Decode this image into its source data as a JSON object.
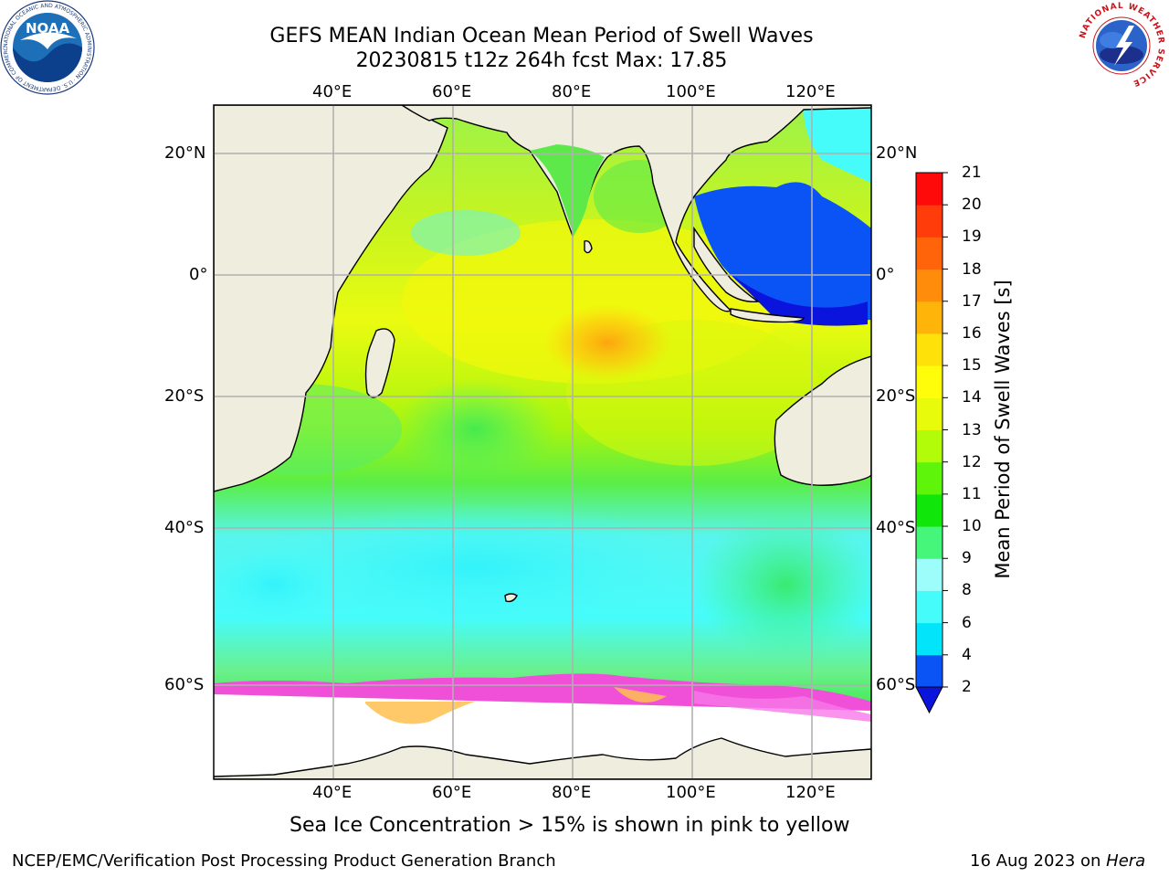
{
  "title": {
    "line1": "GEFS MEAN Indian Ocean Mean Period of Swell Waves",
    "line2": "20230815 t12z 264h fcst   Max: 17.85"
  },
  "map": {
    "lon_range": [
      20,
      130
    ],
    "lat_range": [
      -70,
      28
    ],
    "lon_ticks": [
      "40°E",
      "60°E",
      "80°E",
      "100°E",
      "120°E"
    ],
    "lat_ticks": [
      "20°N",
      "0°",
      "20°S",
      "40°S",
      "60°S"
    ],
    "grid": true,
    "land_color": "#efedde",
    "gridline_color": "#b0b0b0",
    "ice_note": "Sea Ice Concentration > 15% is shown in pink to yellow"
  },
  "colorbar": {
    "title": "Mean Period of Swell Waves [s]",
    "ticks": [
      "2",
      "4",
      "6",
      "8",
      "9",
      "10",
      "11",
      "12",
      "13",
      "14",
      "15",
      "16",
      "17",
      "18",
      "19",
      "20",
      "21"
    ],
    "colors": [
      "#0a54f5",
      "#01e4fa",
      "#46fcfb",
      "#9cfdfa",
      "#45f67a",
      "#10e60a",
      "#5ef50a",
      "#b2fc0a",
      "#e8fb0a",
      "#fffd0a",
      "#ffe10a",
      "#ffb40a",
      "#ff8c0a",
      "#ff640a",
      "#ff3c0a",
      "#ff0a0a"
    ],
    "under_color": "#0a14dc",
    "extend": "min"
  },
  "footer": {
    "left": "NCEP/EMC/Verification Post Processing Product Generation Branch",
    "right_date": "16 Aug 2023 on ",
    "right_machine": "Hera"
  },
  "logos": {
    "left": "noaa-logo",
    "right": "national-weather-service-logo",
    "left_text": "NOAA",
    "left_ring_text": "NATIONAL OCEANIC AND ATMOSPHERIC ADMINISTRATION · U.S. DEPARTMENT OF COMMERCE",
    "right_ring_text": "NATIONAL WEATHER SERVICE"
  }
}
